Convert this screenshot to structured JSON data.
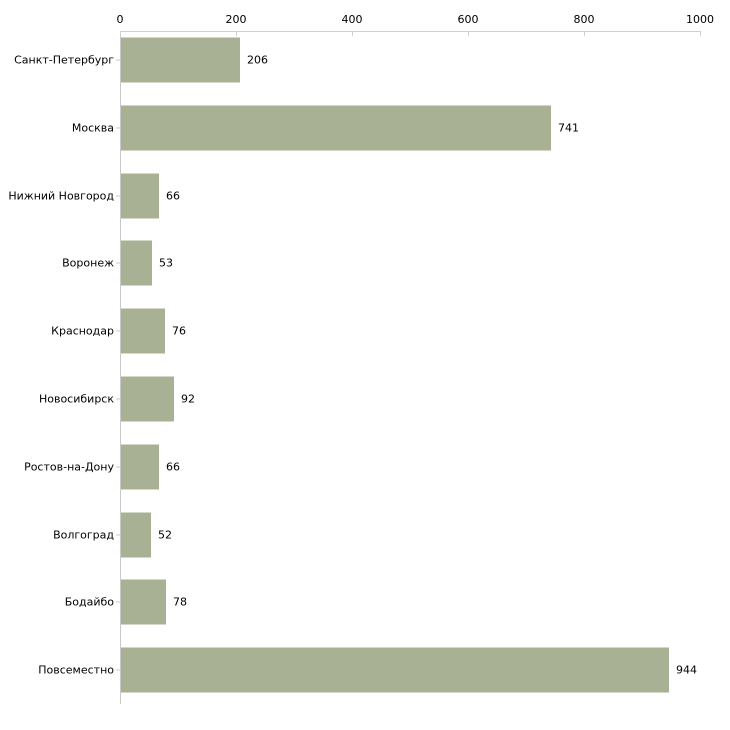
{
  "chart_data": {
    "type": "bar",
    "orientation": "horizontal",
    "title": "",
    "xlabel": "",
    "ylabel": "",
    "categories": [
      "Санкт-Петербург",
      "Москва",
      "Нижний Новгород",
      "Воронеж",
      "Краснодар",
      "Новосибирск",
      "Ростов-на-Дону",
      "Волгоград",
      "Бодайбо",
      "Повсеместно"
    ],
    "values": [
      206,
      741,
      66,
      53,
      76,
      92,
      66,
      52,
      78,
      944
    ],
    "value_labels": [
      "206",
      "741",
      "66",
      "53",
      "76",
      "92",
      "66",
      "52",
      "78",
      "944"
    ],
    "x_ticks": [
      "0",
      "200",
      "400",
      "600",
      "800",
      "1000"
    ],
    "x_tick_values": [
      0,
      200,
      400,
      600,
      800,
      1000
    ],
    "xlim": [
      0,
      1000
    ],
    "grid": false,
    "legend": false,
    "axis_position": "top",
    "colors": {
      "bar": "#a8b193",
      "x_axis_line": "#d2d2c2",
      "x_tick_mark": "#d2d2c2",
      "y_axis_line": "#c9c9c9",
      "y_tick_mark": "#c9c9c9",
      "text": "#000000",
      "background": "#ffffff"
    }
  }
}
